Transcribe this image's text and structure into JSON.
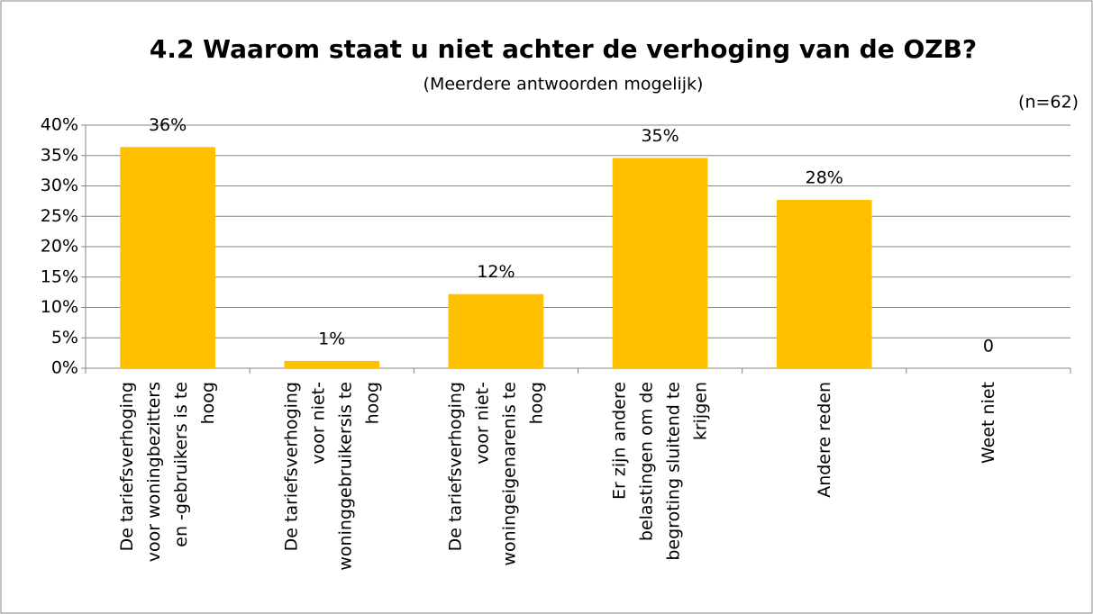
{
  "chart_data": {
    "type": "bar",
    "title": "4.2 Waarom staat u niet achter de verhoging van de OZB?",
    "subtitle": "(Meerdere antwoorden mogelijk)",
    "annotation": "(n=62)",
    "categories": [
      "De tariefsverhoging voor woningbezitters en -gebruikers is te hoog",
      "De tariefsverhoging voor niet-woninggebruikers is te hoog",
      "De tariefsverhoging voor niet-woningeigenaren is te hoog",
      "Er zijn andere belastingen om de begroting sluitend te krijgen",
      "Andere reden",
      "Weet niet"
    ],
    "values": [
      36.4,
      1.2,
      12.2,
      34.6,
      27.7,
      0
    ],
    "value_labels": [
      "36%",
      "1%",
      "12%",
      "35%",
      "28%",
      "0"
    ],
    "color": "#ffc000",
    "ylim": [
      0,
      40
    ],
    "yticks": [
      {
        "value": 0,
        "label": "0%"
      },
      {
        "value": 5,
        "label": "5%"
      },
      {
        "value": 10,
        "label": "10%"
      },
      {
        "value": 15,
        "label": "15%"
      },
      {
        "value": 20,
        "label": "20%"
      },
      {
        "value": 25,
        "label": "25%"
      },
      {
        "value": 30,
        "label": "30%"
      },
      {
        "value": 35,
        "label": "35%"
      },
      {
        "value": 40,
        "label": "40%"
      }
    ],
    "grid": true
  }
}
